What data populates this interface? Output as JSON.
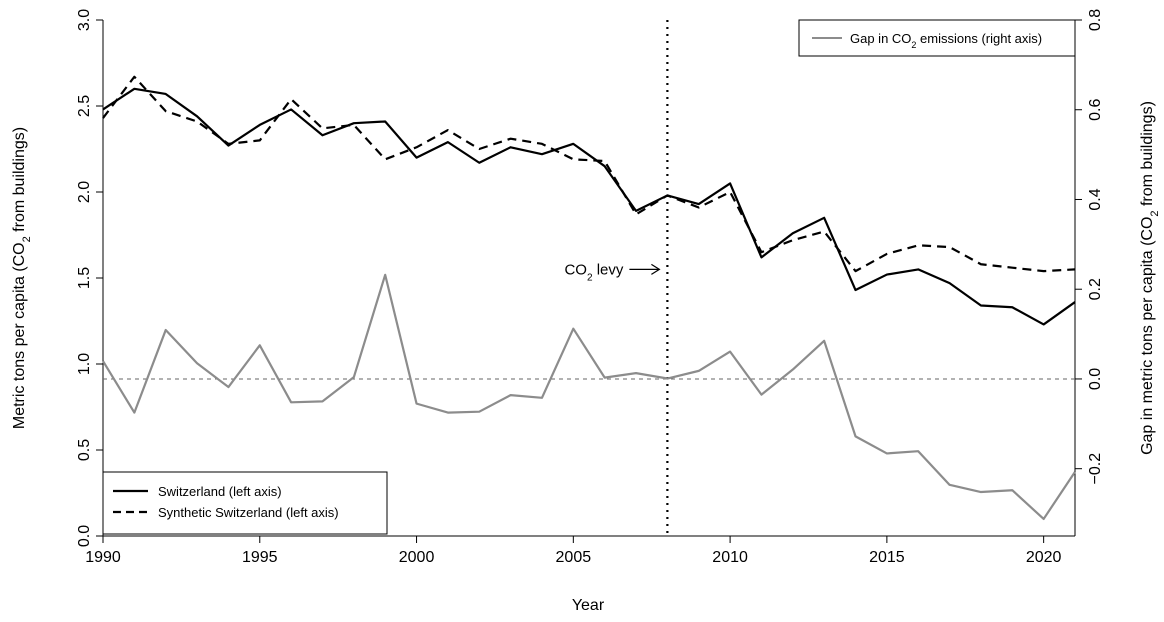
{
  "chart_data": {
    "type": "line",
    "title": "",
    "xlabel": "Year",
    "ylabel_left": "Metric tons per capita (CO",
    "ylabel_left_sub": "2",
    "ylabel_left_tail": " from buildings)",
    "ylabel_right": "Gap in metric tons per capita (CO",
    "ylabel_right_sub": "2",
    "ylabel_right_tail": " from buildings)",
    "xlim": [
      1990,
      2021
    ],
    "ylim_left": [
      0,
      3
    ],
    "ylim_right": [
      -0.35,
      0.8
    ],
    "x_ticks": [
      1990,
      1995,
      2000,
      2005,
      2010,
      2015,
      2020
    ],
    "y_left_ticks": [
      "0.0",
      "0.5",
      "1.0",
      "1.5",
      "2.0",
      "2.5",
      "3.0"
    ],
    "y_right_ticks": [
      "-0.2",
      "0.0",
      "0.2",
      "0.4",
      "0.6",
      "0.8"
    ],
    "grid": false,
    "x": [
      1990,
      1991,
      1992,
      1993,
      1994,
      1995,
      1996,
      1997,
      1998,
      1999,
      2000,
      2001,
      2002,
      2003,
      2004,
      2005,
      2006,
      2007,
      2008,
      2009,
      2010,
      2011,
      2012,
      2013,
      2014,
      2015,
      2016,
      2017,
      2018,
      2019,
      2020,
      2021
    ],
    "series": [
      {
        "name": "Switzerland (left axis)",
        "axis": "left",
        "color": "#000000",
        "style": "solid",
        "values": [
          2.48,
          2.6,
          2.57,
          2.44,
          2.27,
          2.39,
          2.48,
          2.33,
          2.4,
          2.41,
          2.2,
          2.29,
          2.17,
          2.26,
          2.22,
          2.28,
          2.15,
          1.89,
          1.98,
          1.93,
          2.05,
          1.62,
          1.76,
          1.85,
          1.43,
          1.52,
          1.55,
          1.47,
          1.34,
          1.33,
          1.23,
          1.36
        ]
      },
      {
        "name": "Synthetic Switzerland (left axis)",
        "axis": "left",
        "color": "#000000",
        "style": "dashed",
        "values": [
          2.43,
          2.67,
          2.47,
          2.41,
          2.28,
          2.3,
          2.54,
          2.37,
          2.39,
          2.19,
          2.26,
          2.36,
          2.25,
          2.31,
          2.28,
          2.19,
          2.18,
          1.87,
          1.98,
          1.91,
          2.0,
          1.65,
          1.72,
          1.77,
          1.54,
          1.64,
          1.69,
          1.68,
          1.58,
          1.56,
          1.54,
          1.55
        ]
      },
      {
        "name": "Gap in CO2 emissions (right axis)",
        "name_pre": "Gap in CO",
        "name_sub": "2",
        "name_post": " emissions (right axis)",
        "axis": "right",
        "color": "#8c8c8c",
        "style": "solid",
        "values": [
          0.04,
          -0.075,
          0.109,
          0.035,
          -0.018,
          0.075,
          -0.052,
          -0.05,
          0.004,
          0.232,
          -0.055,
          -0.075,
          -0.073,
          -0.036,
          -0.042,
          0.112,
          0.003,
          0.013,
          0.001,
          0.018,
          0.061,
          -0.035,
          0.021,
          0.085,
          -0.128,
          -0.166,
          -0.161,
          -0.236,
          -0.252,
          -0.248,
          -0.312,
          -0.207
        ]
      }
    ],
    "reference_lines": [
      {
        "axis": "right",
        "y": 0.0,
        "style": "dashed",
        "color": "#666666"
      },
      {
        "axis": "x",
        "x": 2008,
        "style": "dotted",
        "color": "#000000"
      }
    ],
    "annotation": {
      "text_pre": "CO",
      "text_sub": "2",
      "text_post": " levy",
      "x": 2008,
      "y_left": 1.55
    },
    "legend_top_right": [
      "Gap in CO2 emissions (right axis)"
    ],
    "legend_bottom_left": [
      "Switzerland (left axis)",
      "Synthetic Switzerland (left axis)"
    ]
  }
}
